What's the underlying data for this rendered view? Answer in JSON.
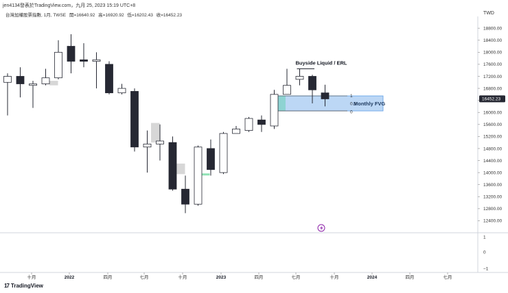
{
  "header": {
    "title_line": "jen4134發表於TradingView.com，九月 25, 2023 15:19 UTC+8",
    "symbol": "台灣加權股票指數, 1月, TWSE",
    "open": "開=16640.92",
    "high": "高=16920.92",
    "low": "低=16202.43",
    "close": "收=16452.23",
    "currency": "TWD"
  },
  "brand": {
    "logo": "17",
    "name": "TradingView"
  },
  "colors": {
    "up_body": "#ffffff",
    "down_body": "#262833",
    "wick": "#262833",
    "fvg_fill": "#bcd7f5",
    "fvg_border": "#5e9ee6",
    "fvg_accent": "#7fd1c6",
    "gray_box": "#d7d7d7",
    "green_mark": "#8ee2b4",
    "price_tag_bg": "#262833",
    "purple_icon": "#8e24aa"
  },
  "chart_data": {
    "type": "candlestick",
    "interval": "1 month",
    "ylim": [
      12000,
      19100
    ],
    "y_ticks": [
      "12400.00",
      "12800.00",
      "13200.00",
      "13600.00",
      "14000.00",
      "14400.00",
      "14800.00",
      "15200.00",
      "15600.00",
      "16000.00",
      "16400.00",
      "16800.00",
      "17200.00",
      "17600.00",
      "18000.00",
      "18400.00",
      "18800.00"
    ],
    "x_tick_labels": [
      "十月",
      "2022",
      "四月",
      "七月",
      "十月",
      "2023",
      "四月",
      "七月",
      "十月",
      "2024",
      "四月",
      "七月"
    ],
    "candles": [
      {
        "o": 17000,
        "h": 17300,
        "l": 15900,
        "c": 17200
      },
      {
        "o": 17200,
        "h": 17500,
        "l": 16500,
        "c": 16950
      },
      {
        "o": 16900,
        "h": 17050,
        "l": 16150,
        "c": 16950
      },
      {
        "o": 16950,
        "h": 17450,
        "l": 16900,
        "c": 17150
      },
      {
        "o": 17150,
        "h": 18400,
        "l": 17100,
        "c": 18000
      },
      {
        "o": 18200,
        "h": 18600,
        "l": 17300,
        "c": 17700
      },
      {
        "o": 17750,
        "h": 18300,
        "l": 17500,
        "c": 17700
      },
      {
        "o": 17700,
        "h": 18000,
        "l": 16800,
        "c": 17750
      },
      {
        "o": 17600,
        "h": 17700,
        "l": 16600,
        "c": 16650
      },
      {
        "o": 16650,
        "h": 16950,
        "l": 16600,
        "c": 16800
      },
      {
        "o": 16700,
        "h": 16800,
        "l": 14700,
        "c": 14850
      },
      {
        "o": 14850,
        "h": 15400,
        "l": 14000,
        "c": 14950
      },
      {
        "o": 14950,
        "h": 15600,
        "l": 14400,
        "c": 15050
      },
      {
        "o": 15000,
        "h": 15200,
        "l": 13400,
        "c": 13450
      },
      {
        "o": 13450,
        "h": 13900,
        "l": 12650,
        "c": 12950
      },
      {
        "o": 12950,
        "h": 14900,
        "l": 12900,
        "c": 14850
      },
      {
        "o": 14800,
        "h": 15100,
        "l": 13900,
        "c": 14100
      },
      {
        "o": 14000,
        "h": 15350,
        "l": 13950,
        "c": 15300
      },
      {
        "o": 15300,
        "h": 15550,
        "l": 15300,
        "c": 15450
      },
      {
        "o": 15400,
        "h": 15850,
        "l": 15350,
        "c": 15800
      },
      {
        "o": 15750,
        "h": 15900,
        "l": 15350,
        "c": 15600
      },
      {
        "o": 15550,
        "h": 16750,
        "l": 15450,
        "c": 16600
      },
      {
        "o": 16600,
        "h": 17450,
        "l": 16600,
        "c": 16900
      },
      {
        "o": 17100,
        "h": 17450,
        "l": 16900,
        "c": 17200
      },
      {
        "o": 17200,
        "h": 17250,
        "l": 16300,
        "c": 16750
      },
      {
        "o": 16650,
        "h": 16920,
        "l": 16200,
        "c": 16450
      }
    ],
    "gray_boxes": [
      {
        "from": 3,
        "y_top": 17050,
        "y_bottom": 16900
      },
      {
        "from": 11,
        "y_top": 15650,
        "y_bottom": 15000
      },
      {
        "from": 13,
        "y_top": 14300,
        "y_bottom": 13950
      }
    ],
    "annotations": {
      "buyside_label": "Buyside Liquid / ERL",
      "buyside_level": 17450,
      "fvg_label": "Monthly FVG",
      "fvg_top": 16550,
      "fvg_bottom": 16050,
      "fvg_fib_labels": [
        "1",
        "0.5",
        "0"
      ],
      "last_price": "16452.23"
    },
    "lower_axis_ticks": [
      "1",
      "0",
      "−1"
    ]
  }
}
